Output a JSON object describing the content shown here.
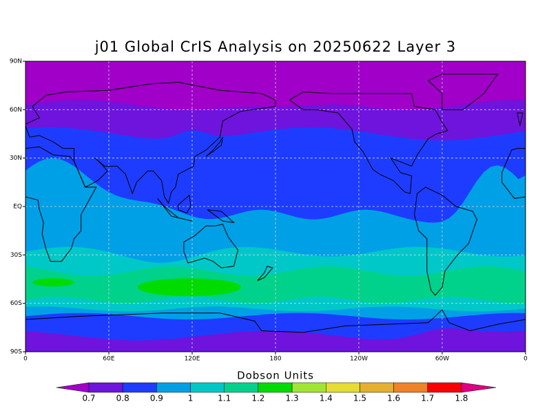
{
  "title": "j01 Global CrIS Analysis on 20250622 Layer 3",
  "map": {
    "lat_ticks": [
      {
        "value": 90,
        "label": "90N"
      },
      {
        "value": 60,
        "label": "60N"
      },
      {
        "value": 30,
        "label": "30N"
      },
      {
        "value": 0,
        "label": "EQ"
      },
      {
        "value": -30,
        "label": "30S"
      },
      {
        "value": -60,
        "label": "60S"
      },
      {
        "value": -90,
        "label": "90S"
      }
    ],
    "lon_ticks": [
      0,
      {
        "value": 60,
        "label": "60E"
      },
      {
        "value": 120,
        "label": "120E"
      },
      180,
      {
        "value": 240,
        "label": "120W"
      },
      {
        "value": 300,
        "label": "60W"
      },
      {
        "value": 360,
        "label": "0"
      }
    ],
    "grid": true
  },
  "colorbar": {
    "label": "Dobson Units",
    "levels": [
      0.7,
      0.8,
      0.9,
      1,
      1.1,
      1.2,
      1.3,
      1.4,
      1.5,
      1.6,
      1.7,
      1.8
    ],
    "colors": [
      "#a000c8",
      "#6e14dc",
      "#1e3cff",
      "#00a0e6",
      "#00c8c8",
      "#00d28c",
      "#00dc00",
      "#a0e632",
      "#e6dc32",
      "#e6af2d",
      "#f08228",
      "#fa0000",
      "#dc0082"
    ]
  }
}
